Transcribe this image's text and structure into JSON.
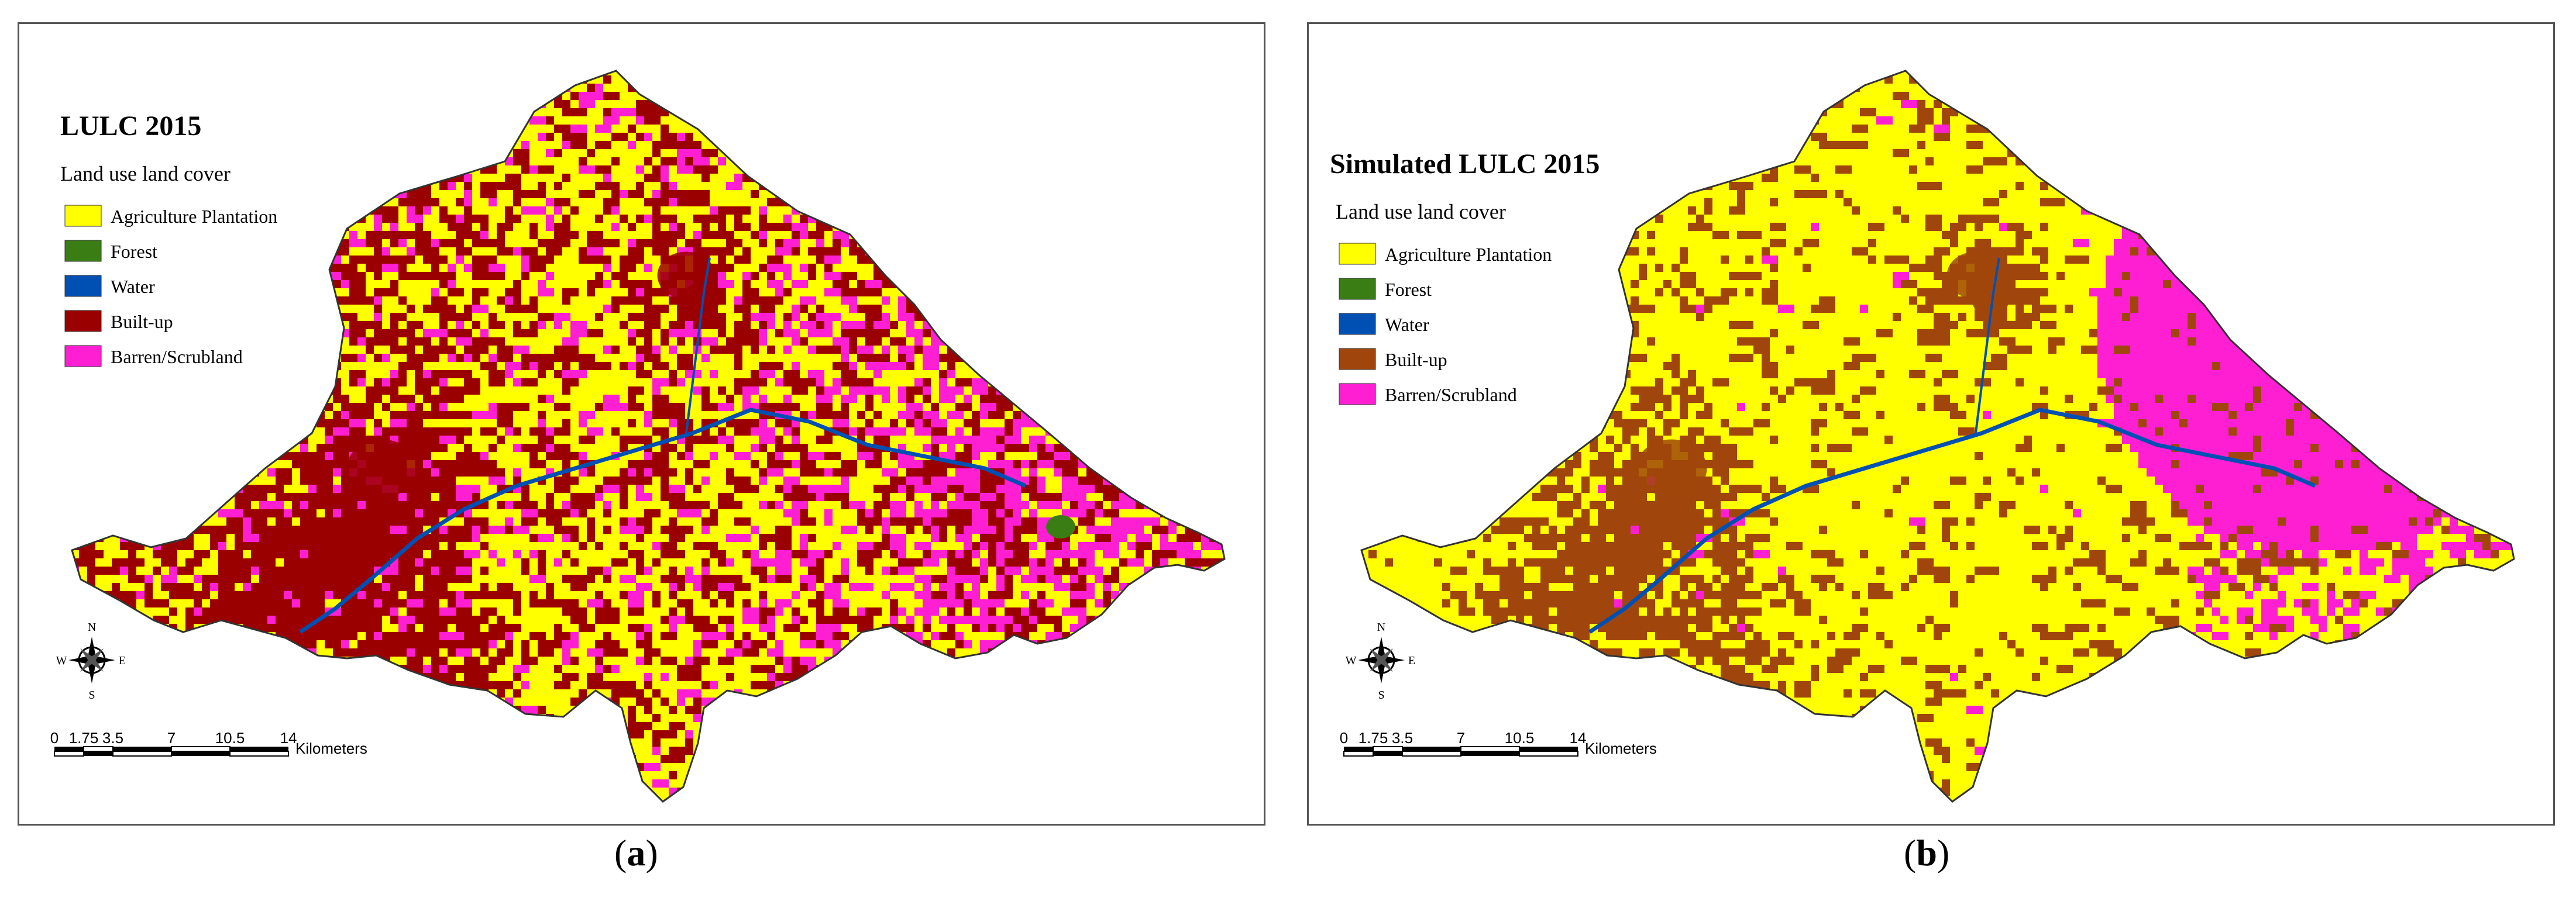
{
  "legend_heading": "Land use land cover",
  "classes": [
    {
      "name": "Agriculture Plantation",
      "color": "#ffff00"
    },
    {
      "name": "Forest",
      "color": "#3a7d14"
    },
    {
      "name": "Water",
      "color": "#0050b4"
    },
    {
      "name": "Built-up",
      "color": "#9b0000"
    },
    {
      "name": "Barren/Scrubland",
      "color": "#ff1fd3"
    }
  ],
  "panels": [
    {
      "title": "LULC 2015",
      "caption_letter": "a",
      "builtup_color": "#9b0000",
      "composition": {
        "builtup": 0.26,
        "barren": 0.1,
        "forest": 0.012
      },
      "barren_pattern": "scattered"
    },
    {
      "title": "Simulated LULC 2015",
      "caption_letter": "b",
      "builtup_color": "#a0460c",
      "composition": {
        "builtup": 0.12,
        "barren": 0.13,
        "forest": 0.006
      },
      "barren_pattern": "clustered-northeast"
    }
  ],
  "scale_bar": {
    "ticks": [
      "0",
      "1.75",
      "3.5",
      "7",
      "10.5",
      "14"
    ],
    "unit": "Kilometers"
  },
  "north_arrow": {
    "n": "N",
    "s": "S",
    "e": "E",
    "w": "W"
  }
}
